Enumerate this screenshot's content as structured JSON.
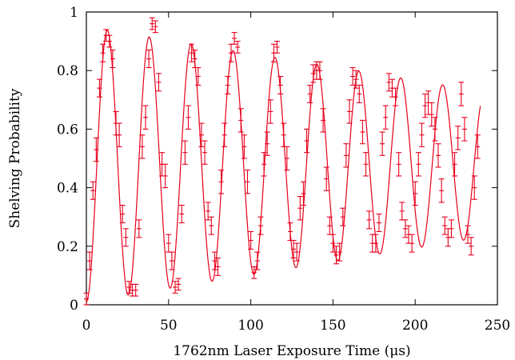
{
  "chart_data": {
    "type": "scatter",
    "xlabel": "1762nm Laser Exposure Time (μs)",
    "ylabel": "Shelving Probability",
    "xlim": [
      0,
      250
    ],
    "ylim": [
      0,
      1
    ],
    "xticks": [
      0,
      50,
      100,
      150,
      200,
      250
    ],
    "xtick_labels": [
      "0",
      "50",
      "100",
      "150",
      "200",
      "250"
    ],
    "yticks": [
      0,
      0.2,
      0.4,
      0.6,
      0.8,
      1
    ],
    "ytick_labels": [
      "0",
      "0.2",
      "0.4",
      "0.6",
      "0.8",
      "1"
    ],
    "grid": false,
    "legend": "none",
    "series": [
      {
        "kind": "points-with-errorbars",
        "color": "#e8001c",
        "x": [
          0,
          2,
          4,
          6,
          8,
          10,
          12,
          14,
          16,
          18,
          20,
          22,
          24,
          26,
          28,
          30,
          32,
          34,
          36,
          38,
          40,
          42,
          44,
          46,
          48,
          50,
          52,
          54,
          56,
          58,
          60,
          62,
          64,
          66,
          68,
          70,
          72,
          74,
          76,
          78,
          80,
          82,
          84,
          86,
          88,
          90,
          92,
          94,
          96,
          98,
          100,
          102,
          104,
          106,
          108,
          110,
          112,
          114,
          116,
          118,
          120,
          122,
          124,
          126,
          128,
          130,
          132,
          134,
          136,
          138,
          140,
          142,
          144,
          146,
          148,
          150,
          152,
          154,
          156,
          158,
          160,
          162,
          164,
          166,
          168,
          170,
          172,
          174,
          176,
          178,
          180,
          182,
          184,
          186,
          188,
          190,
          192,
          194,
          196,
          198,
          200,
          202,
          204,
          206,
          208,
          210,
          212,
          214,
          216,
          218,
          220,
          222,
          224,
          226,
          228,
          230,
          232,
          234,
          236,
          238
        ],
        "y": [
          0.02,
          0.15,
          0.39,
          0.53,
          0.74,
          0.86,
          0.92,
          0.9,
          0.84,
          0.62,
          0.58,
          0.31,
          0.23,
          0.06,
          0.05,
          0.05,
          0.26,
          0.54,
          0.64,
          0.84,
          0.96,
          0.95,
          0.76,
          0.48,
          0.44,
          0.21,
          0.15,
          0.06,
          0.07,
          0.31,
          0.52,
          0.64,
          0.86,
          0.84,
          0.78,
          0.58,
          0.52,
          0.32,
          0.27,
          0.15,
          0.13,
          0.42,
          0.58,
          0.75,
          0.86,
          0.91,
          0.88,
          0.63,
          0.54,
          0.42,
          0.22,
          0.11,
          0.15,
          0.27,
          0.48,
          0.55,
          0.66,
          0.86,
          0.88,
          0.75,
          0.58,
          0.5,
          0.25,
          0.19,
          0.18,
          0.33,
          0.38,
          0.56,
          0.72,
          0.79,
          0.8,
          0.8,
          0.63,
          0.43,
          0.27,
          0.21,
          0.17,
          0.18,
          0.3,
          0.51,
          0.66,
          0.78,
          0.77,
          0.72,
          0.59,
          0.48,
          0.29,
          0.21,
          0.21,
          0.28,
          0.55,
          0.64,
          0.76,
          0.74,
          0.71,
          0.48,
          0.32,
          0.26,
          0.24,
          0.21,
          0.38,
          0.48,
          0.58,
          0.68,
          0.69,
          0.65,
          0.6,
          0.51,
          0.39,
          0.27,
          0.23,
          0.26,
          0.48,
          0.57,
          0.72,
          0.6,
          0.24,
          0.2,
          0.4,
          0.54
        ],
        "err": [
          0.02,
          0.03,
          0.03,
          0.04,
          0.03,
          0.03,
          0.02,
          0.02,
          0.03,
          0.04,
          0.04,
          0.03,
          0.03,
          0.02,
          0.02,
          0.02,
          0.03,
          0.04,
          0.04,
          0.03,
          0.02,
          0.02,
          0.03,
          0.04,
          0.04,
          0.03,
          0.03,
          0.02,
          0.02,
          0.03,
          0.04,
          0.04,
          0.03,
          0.03,
          0.03,
          0.04,
          0.04,
          0.03,
          0.03,
          0.03,
          0.03,
          0.04,
          0.04,
          0.03,
          0.03,
          0.02,
          0.02,
          0.04,
          0.04,
          0.04,
          0.03,
          0.02,
          0.03,
          0.03,
          0.04,
          0.04,
          0.04,
          0.03,
          0.02,
          0.03,
          0.04,
          0.04,
          0.03,
          0.03,
          0.03,
          0.04,
          0.04,
          0.04,
          0.03,
          0.03,
          0.03,
          0.03,
          0.04,
          0.04,
          0.03,
          0.03,
          0.03,
          0.03,
          0.03,
          0.04,
          0.04,
          0.03,
          0.03,
          0.03,
          0.04,
          0.04,
          0.03,
          0.03,
          0.03,
          0.03,
          0.04,
          0.04,
          0.03,
          0.03,
          0.03,
          0.04,
          0.03,
          0.03,
          0.03,
          0.03,
          0.04,
          0.04,
          0.04,
          0.04,
          0.04,
          0.04,
          0.04,
          0.04,
          0.04,
          0.03,
          0.03,
          0.03,
          0.04,
          0.04,
          0.04,
          0.04,
          0.03,
          0.03,
          0.04,
          0.04
        ]
      },
      {
        "kind": "fit-curve",
        "color": "#e8001c",
        "model": "y = c + a*exp(-t/tau)*(1-cos(2*pi*t/T)) ... damped Rabi fit",
        "x_range": [
          0,
          240
        ],
        "T": 25.5,
        "a": 0.47,
        "c": 0.01,
        "tau": 900,
        "floor_rise": 0.22,
        "peak_drop": 0.22
      }
    ]
  }
}
